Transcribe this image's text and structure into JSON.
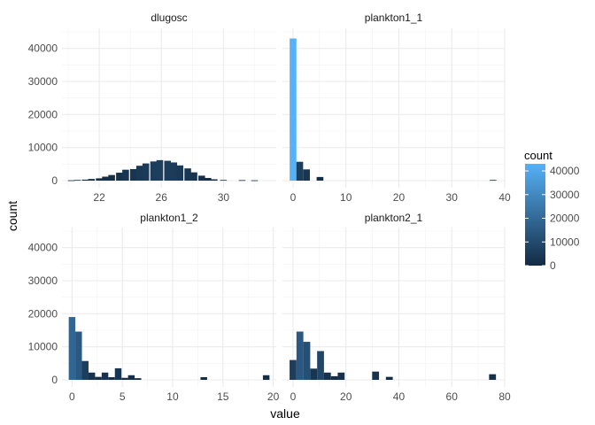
{
  "chart_data": {
    "type": "bar",
    "chart_kind": "faceted-histogram",
    "xlabel": "value",
    "ylabel": "count",
    "ylim": [
      0,
      45000
    ],
    "y_ticks": [
      0,
      10000,
      20000,
      30000,
      40000
    ],
    "y_tick_labels": [
      "0",
      "10000",
      "20000",
      "30000",
      "40000"
    ],
    "grid": true,
    "legend": {
      "title": "count",
      "placement": "right",
      "type": "colorbar",
      "range": [
        0,
        43000
      ],
      "ticks": [
        0,
        10000,
        20000,
        30000,
        40000
      ],
      "tick_labels": [
        "0",
        "10000",
        "20000",
        "30000",
        "40000"
      ],
      "color_low": "#132B43",
      "color_high": "#56B1F7"
    },
    "facets": [
      {
        "title": "dlugosc",
        "xlim": [
          19.6,
          33.4
        ],
        "x_ticks": [
          22,
          26,
          30
        ],
        "x_tick_labels": [
          "22",
          "26",
          "30"
        ],
        "bin_width": 0.43,
        "bins": [
          {
            "x": 20.2,
            "count": 100
          },
          {
            "x": 20.6,
            "count": 200
          },
          {
            "x": 21.1,
            "count": 300
          },
          {
            "x": 21.5,
            "count": 500
          },
          {
            "x": 22.0,
            "count": 700
          },
          {
            "x": 22.4,
            "count": 1200
          },
          {
            "x": 22.8,
            "count": 1700
          },
          {
            "x": 23.3,
            "count": 2400
          },
          {
            "x": 23.7,
            "count": 3300
          },
          {
            "x": 24.2,
            "count": 3500
          },
          {
            "x": 24.6,
            "count": 4500
          },
          {
            "x": 25.0,
            "count": 5200
          },
          {
            "x": 25.5,
            "count": 5800
          },
          {
            "x": 25.9,
            "count": 6200
          },
          {
            "x": 26.4,
            "count": 6000
          },
          {
            "x": 26.8,
            "count": 5500
          },
          {
            "x": 27.2,
            "count": 4600
          },
          {
            "x": 27.7,
            "count": 3700
          },
          {
            "x": 28.1,
            "count": 2500
          },
          {
            "x": 28.6,
            "count": 1500
          },
          {
            "x": 29.0,
            "count": 800
          },
          {
            "x": 29.4,
            "count": 400
          },
          {
            "x": 30.0,
            "count": 200
          },
          {
            "x": 31.2,
            "count": 150
          },
          {
            "x": 32.0,
            "count": 100
          }
        ]
      },
      {
        "title": "plankton1_1",
        "xlim": [
          -2,
          40
        ],
        "x_ticks": [
          0,
          10,
          20,
          30,
          40
        ],
        "x_tick_labels": [
          "0",
          "10",
          "20",
          "30",
          "40"
        ],
        "bin_width": 1.27,
        "bins": [
          {
            "x": 0,
            "count": 43000
          },
          {
            "x": 1.27,
            "count": 5700
          },
          {
            "x": 2.55,
            "count": 3400
          },
          {
            "x": 5.1,
            "count": 1100
          },
          {
            "x": 37.8,
            "count": 200
          }
        ]
      },
      {
        "title": "plankton1_2",
        "xlim": [
          -1,
          20.3
        ],
        "x_ticks": [
          0,
          5,
          10,
          15,
          20
        ],
        "x_tick_labels": [
          "0",
          "5",
          "10",
          "15",
          "20"
        ],
        "bin_width": 0.655,
        "bins": [
          {
            "x": 0,
            "count": 19000
          },
          {
            "x": 0.655,
            "count": 14600
          },
          {
            "x": 1.31,
            "count": 5700
          },
          {
            "x": 1.965,
            "count": 2200
          },
          {
            "x": 2.62,
            "count": 900
          },
          {
            "x": 3.275,
            "count": 2200
          },
          {
            "x": 3.93,
            "count": 800
          },
          {
            "x": 4.585,
            "count": 3500
          },
          {
            "x": 5.24,
            "count": 600
          },
          {
            "x": 5.895,
            "count": 1400
          },
          {
            "x": 6.55,
            "count": 500
          },
          {
            "x": 13.1,
            "count": 800
          },
          {
            "x": 19.3,
            "count": 1400
          }
        ]
      },
      {
        "title": "plankton2_1",
        "xlim": [
          -4,
          80
        ],
        "x_ticks": [
          0,
          20,
          40,
          60,
          80
        ],
        "x_tick_labels": [
          "0",
          "20",
          "40",
          "60",
          "80"
        ],
        "bin_width": 2.6,
        "bins": [
          {
            "x": 0,
            "count": 6000
          },
          {
            "x": 2.6,
            "count": 14600
          },
          {
            "x": 5.2,
            "count": 11500
          },
          {
            "x": 7.8,
            "count": 3400
          },
          {
            "x": 10.4,
            "count": 8700
          },
          {
            "x": 13.0,
            "count": 2200
          },
          {
            "x": 15.6,
            "count": 1100
          },
          {
            "x": 18.2,
            "count": 2200
          },
          {
            "x": 31.2,
            "count": 2500
          },
          {
            "x": 36.4,
            "count": 900
          },
          {
            "x": 75.4,
            "count": 1700
          }
        ]
      }
    ]
  }
}
